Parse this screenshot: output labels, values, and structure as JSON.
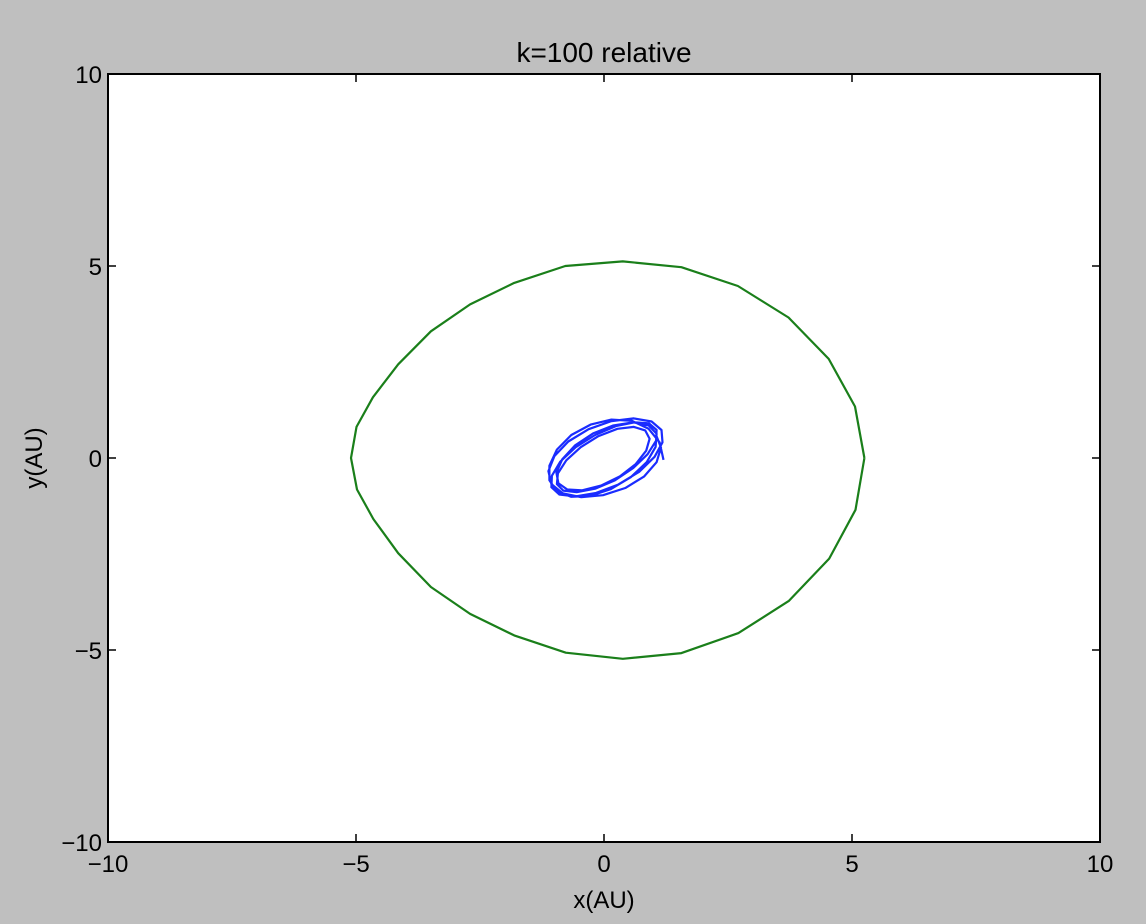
{
  "chart_data": {
    "type": "line",
    "title": "k=100 relative",
    "xlabel": "x(AU)",
    "ylabel": "y(AU)",
    "xlim": [
      -10,
      10
    ],
    "ylim": [
      -10,
      10
    ],
    "xticks": [
      -10,
      -5,
      0,
      5,
      10
    ],
    "yticks": [
      -10,
      -5,
      0,
      5,
      10
    ],
    "xtick_labels": [
      "−10",
      "−5",
      "0",
      "5",
      "10"
    ],
    "ytick_labels": [
      "−10",
      "−5",
      "0",
      "5",
      "10"
    ],
    "grid": false,
    "series": [
      {
        "color": "#1a2cff",
        "x": [
          1.2,
          1.12,
          0.9,
          0.56,
          0.15,
          -0.27,
          -0.66,
          -0.95,
          -1.1,
          -1.1,
          -0.95,
          -0.66,
          -0.28,
          0.14,
          0.54,
          0.86,
          1.04,
          1.06,
          0.9,
          0.59,
          0.19,
          -0.22,
          -0.58,
          -0.84,
          -0.96,
          -0.92,
          -0.74,
          -0.44,
          -0.06,
          0.32,
          0.64,
          0.85,
          0.92,
          0.83,
          0.6,
          0.27,
          -0.11,
          -0.47,
          -0.76,
          -0.93,
          -0.95,
          -0.82,
          -0.55,
          -0.18,
          0.22,
          0.59,
          0.88,
          1.05,
          1.06,
          0.91,
          0.62,
          0.24,
          -0.18,
          -0.57,
          -0.88,
          -1.05,
          -1.06,
          -0.9,
          -0.58,
          -0.16,
          0.29,
          0.71,
          1.02,
          1.18,
          1.16,
          0.96,
          0.6,
          0.15,
          -0.31,
          -0.72,
          -1.0,
          -1.12,
          -1.06,
          -0.83,
          -0.46,
          -0.02,
          0.43,
          0.81,
          1.06,
          1.15,
          1.05
        ],
        "y": [
          -0.05,
          0.41,
          0.76,
          0.97,
          1.0,
          0.87,
          0.6,
          0.22,
          -0.2,
          -0.58,
          -0.87,
          -1.01,
          -0.99,
          -0.81,
          -0.5,
          -0.11,
          0.29,
          0.63,
          0.85,
          0.93,
          0.85,
          0.64,
          0.33,
          -0.03,
          -0.38,
          -0.66,
          -0.82,
          -0.84,
          -0.72,
          -0.48,
          -0.16,
          0.19,
          0.5,
          0.72,
          0.81,
          0.76,
          0.57,
          0.28,
          -0.06,
          -0.4,
          -0.68,
          -0.85,
          -0.89,
          -0.8,
          -0.58,
          -0.26,
          0.1,
          0.45,
          0.73,
          0.9,
          0.93,
          0.83,
          0.6,
          0.28,
          -0.09,
          -0.46,
          -0.76,
          -0.95,
          -1.0,
          -0.91,
          -0.69,
          -0.36,
          0.03,
          0.41,
          0.73,
          0.95,
          1.03,
          0.96,
          0.75,
          0.43,
          0.05,
          -0.34,
          -0.68,
          -0.92,
          -1.02,
          -0.97,
          -0.78,
          -0.48,
          -0.11,
          0.27,
          0.6
        ]
      },
      {
        "color": "#1a7f1a",
        "x": [
          5.25,
          5.07,
          4.54,
          3.73,
          2.71,
          1.56,
          0.38,
          -0.77,
          -1.81,
          -2.7,
          -3.49,
          -4.15,
          -4.65,
          -4.98,
          -5.1,
          -4.99,
          -4.66,
          -4.15,
          -3.49,
          -2.7,
          -1.81,
          -0.78,
          0.38,
          1.56,
          2.7,
          3.72,
          4.53,
          5.06,
          5.25
        ],
        "y": [
          0.0,
          -1.35,
          -2.62,
          -3.72,
          -4.56,
          -5.08,
          -5.23,
          -5.07,
          -4.62,
          -4.06,
          -3.36,
          -2.48,
          -1.59,
          -0.82,
          0.0,
          0.81,
          1.58,
          2.44,
          3.3,
          4.0,
          4.56,
          5.0,
          5.12,
          4.97,
          4.48,
          3.66,
          2.58,
          1.34,
          0.0
        ]
      }
    ]
  }
}
